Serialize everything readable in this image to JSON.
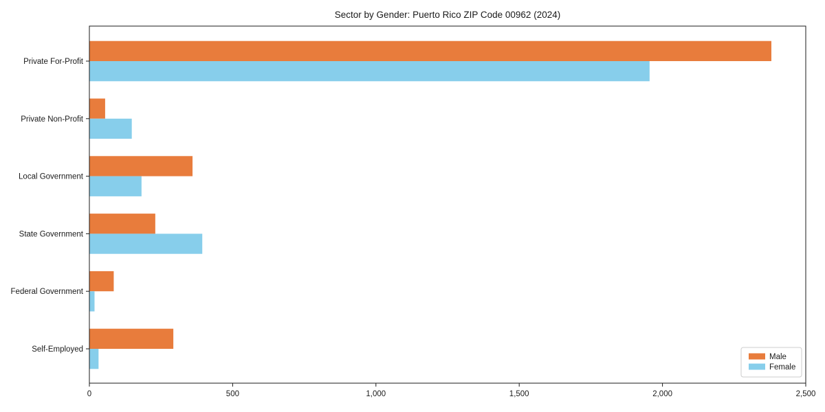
{
  "chart_data": {
    "type": "bar",
    "orientation": "horizontal",
    "title": "Sector by Gender: Puerto Rico ZIP Code 00962 (2024)",
    "categories": [
      "Private For-Profit",
      "Private Non-Profit",
      "Local Government",
      "State Government",
      "Federal Government",
      "Self-Employed"
    ],
    "series": [
      {
        "name": "Male",
        "color": "#E87C3C",
        "values": [
          2380,
          55,
          360,
          230,
          85,
          293
        ]
      },
      {
        "name": "Female",
        "color": "#87CEEB",
        "values": [
          1955,
          148,
          182,
          394,
          18,
          32
        ]
      }
    ],
    "xlabel": "",
    "ylabel": "",
    "xlim": [
      0,
      2500
    ],
    "xticks": [
      0,
      500,
      1000,
      1500,
      2000,
      2500
    ],
    "xtick_labels": [
      "0",
      "500",
      "1,000",
      "1,500",
      "2,000",
      "2,500"
    ],
    "legend": {
      "position": "lower right",
      "entries": [
        "Male",
        "Female"
      ]
    },
    "grid": false,
    "colors": {
      "axis": "#1a1a1a",
      "legend_border": "#cccccc",
      "background": "#ffffff"
    }
  }
}
